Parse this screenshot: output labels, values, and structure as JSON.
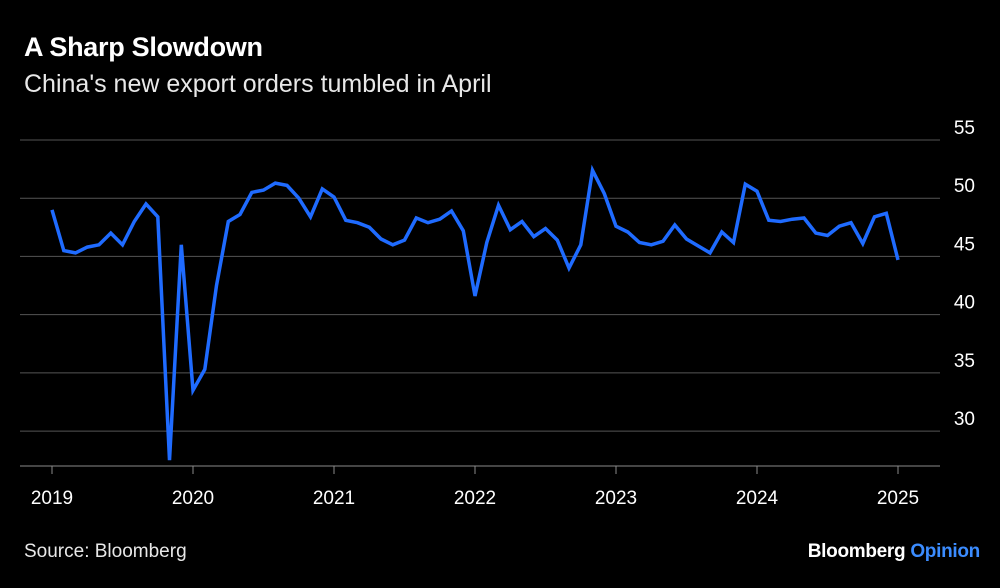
{
  "header": {
    "title": "A Sharp Slowdown",
    "subtitle": "China's new export orders tumbled in April"
  },
  "footer": {
    "source": "Source: Bloomberg",
    "brand_primary": "Bloomberg",
    "brand_secondary": "Opinion"
  },
  "colors": {
    "background": "#000000",
    "line": "#1f6bff",
    "grid": "#555555",
    "text": "#ffffff"
  },
  "chart_data": {
    "type": "line",
    "title": "A Sharp Slowdown",
    "subtitle": "China's new export orders tumbled in April",
    "xlabel": "",
    "ylabel": "",
    "ylim": [
      27,
      55
    ],
    "y_ticks": [
      30,
      35,
      40,
      45,
      50,
      55
    ],
    "x_ticks": [
      {
        "label": "2019",
        "value": 2019
      },
      {
        "label": "2020",
        "value": 2020
      },
      {
        "label": "2021",
        "value": 2021
      },
      {
        "label": "2022",
        "value": 2022
      },
      {
        "label": "2023",
        "value": 2023
      },
      {
        "label": "2024",
        "value": 2024
      },
      {
        "label": "2025",
        "value": 2025
      }
    ],
    "grid": true,
    "legend": "none",
    "series": [
      {
        "name": "New export orders",
        "start": "2019-01",
        "values": [
          49.0,
          45.5,
          45.3,
          45.8,
          46.0,
          47.0,
          46.0,
          48.0,
          49.5,
          48.4,
          27.5,
          46.0,
          33.5,
          35.3,
          42.5,
          48.0,
          48.6,
          50.5,
          50.7,
          51.3,
          51.1,
          50.0,
          48.4,
          50.8,
          50.1,
          48.1,
          47.9,
          47.5,
          46.5,
          46.0,
          46.4,
          48.3,
          47.9,
          48.2,
          48.9,
          47.2,
          41.6,
          46.2,
          49.4,
          47.3,
          48.0,
          46.7,
          47.4,
          46.4,
          44.0,
          46.0,
          52.4,
          50.4,
          47.6,
          47.1,
          46.2,
          46.0,
          46.3,
          47.7,
          46.5,
          45.9,
          45.3,
          47.1,
          46.2,
          51.2,
          50.6,
          48.1,
          48.0,
          48.2,
          48.3,
          47.0,
          46.8,
          47.6,
          47.9,
          46.1,
          48.4,
          48.7,
          44.7
        ]
      }
    ]
  }
}
